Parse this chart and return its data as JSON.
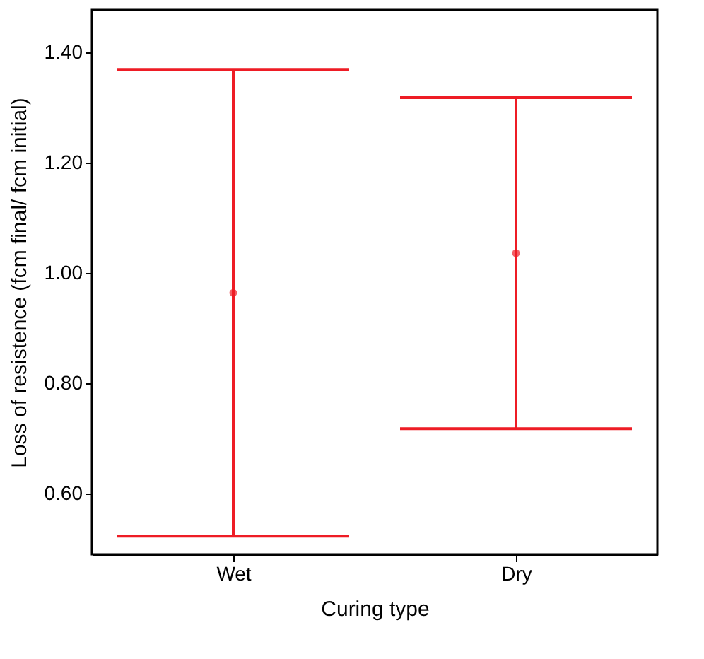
{
  "chart_data": {
    "type": "scatter",
    "xlabel": "Curing type",
    "ylabel": "Loss of resistence (fcm final/ fcm initial)",
    "categories": [
      "Wet",
      "Dry"
    ],
    "colors": [
      "#ee1c25",
      "#ee1c25"
    ],
    "values": [
      0.964,
      1.036
    ],
    "errors": [
      [
        0.523,
        1.369
      ],
      [
        0.718,
        1.318
      ]
    ],
    "ylim": [
      0.49,
      1.477
    ],
    "yticks": [
      {
        "value": 0.6,
        "label": "0.60"
      },
      {
        "value": 0.8,
        "label": "0.80"
      },
      {
        "value": 1.0,
        "label": "1.00"
      },
      {
        "value": 1.2,
        "label": "1.20"
      },
      {
        "value": 1.4,
        "label": "1.40"
      }
    ],
    "grid": false,
    "marker": "circle"
  }
}
